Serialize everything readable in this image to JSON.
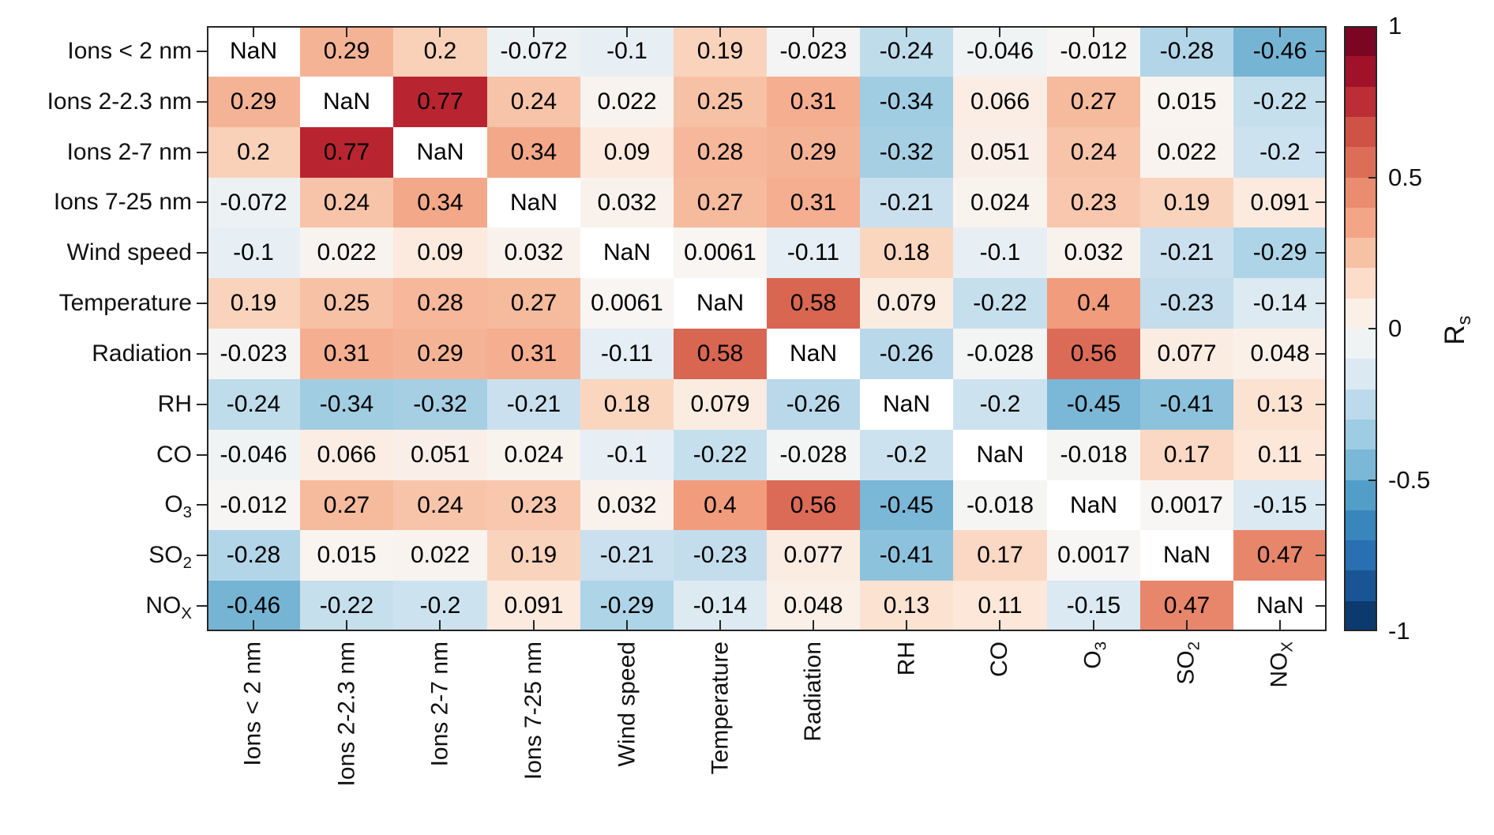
{
  "chart_data": {
    "type": "heatmap",
    "title": "",
    "nan_text": "NaN",
    "variables": [
      {
        "main": "Ions < 2 nm",
        "sub": ""
      },
      {
        "main": "Ions 2-2.3 nm",
        "sub": ""
      },
      {
        "main": "Ions 2-7 nm",
        "sub": ""
      },
      {
        "main": "Ions 7-25 nm",
        "sub": ""
      },
      {
        "main": "Wind speed",
        "sub": ""
      },
      {
        "main": "Temperature",
        "sub": ""
      },
      {
        "main": "Radiation",
        "sub": ""
      },
      {
        "main": "RH",
        "sub": ""
      },
      {
        "main": "CO",
        "sub": ""
      },
      {
        "main": "O",
        "sub": "3"
      },
      {
        "main": "SO",
        "sub": "2"
      },
      {
        "main": "NO",
        "sub": "X"
      }
    ],
    "matrix": [
      [
        null,
        0.29,
        0.2,
        -0.072,
        -0.1,
        0.19,
        -0.023,
        -0.24,
        -0.046,
        -0.012,
        -0.28,
        -0.46
      ],
      [
        0.29,
        null,
        0.77,
        0.24,
        0.022,
        0.25,
        0.31,
        -0.34,
        0.066,
        0.27,
        0.015,
        -0.22
      ],
      [
        0.2,
        0.77,
        null,
        0.34,
        0.09,
        0.28,
        0.29,
        -0.32,
        0.051,
        0.24,
        0.022,
        -0.2
      ],
      [
        -0.072,
        0.24,
        0.34,
        null,
        0.032,
        0.27,
        0.31,
        -0.21,
        0.024,
        0.23,
        0.19,
        0.091
      ],
      [
        -0.1,
        0.022,
        0.09,
        0.032,
        null,
        0.0061,
        -0.11,
        0.18,
        -0.1,
        0.032,
        -0.21,
        -0.29
      ],
      [
        0.19,
        0.25,
        0.28,
        0.27,
        0.0061,
        null,
        0.58,
        0.079,
        -0.22,
        0.4,
        -0.23,
        -0.14
      ],
      [
        -0.023,
        0.31,
        0.29,
        0.31,
        -0.11,
        0.58,
        null,
        -0.26,
        -0.028,
        0.56,
        0.077,
        0.048
      ],
      [
        -0.24,
        -0.34,
        -0.32,
        -0.21,
        0.18,
        0.079,
        -0.26,
        null,
        -0.2,
        -0.45,
        -0.41,
        0.13
      ],
      [
        -0.046,
        0.066,
        0.051,
        0.024,
        -0.1,
        -0.22,
        -0.028,
        -0.2,
        null,
        -0.018,
        0.17,
        0.11
      ],
      [
        -0.012,
        0.27,
        0.24,
        0.23,
        0.032,
        0.4,
        0.56,
        -0.45,
        -0.018,
        null,
        0.0017,
        -0.15
      ],
      [
        -0.28,
        0.015,
        0.022,
        0.19,
        -0.21,
        -0.23,
        0.077,
        -0.41,
        0.17,
        0.0017,
        null,
        0.47
      ],
      [
        -0.46,
        -0.22,
        -0.2,
        0.091,
        -0.29,
        -0.14,
        0.048,
        0.13,
        0.11,
        -0.15,
        0.47,
        null
      ]
    ],
    "colorbar": {
      "label_main": "R",
      "label_sub": "s",
      "range": [
        -1,
        1
      ],
      "steps": 20,
      "ticks": [
        {
          "label": "1",
          "value": 1
        },
        {
          "label": "0.5",
          "value": 0.5
        },
        {
          "label": "0",
          "value": 0
        },
        {
          "label": "-0.5",
          "value": -0.5
        },
        {
          "label": "-1",
          "value": -1
        }
      ]
    },
    "color_scale": {
      "levels": [
        -1,
        -0.9,
        -0.8,
        -0.7,
        -0.6,
        -0.5,
        -0.4,
        -0.3,
        -0.2,
        -0.1,
        0,
        0.1,
        0.2,
        0.3,
        0.4,
        0.5,
        0.6,
        0.7,
        0.8,
        0.9,
        1
      ],
      "colors": [
        "#053061",
        "#12447c",
        "#2166ac",
        "#2e79b5",
        "#4393c3",
        "#63a8ce",
        "#92c5de",
        "#abd2e6",
        "#cde2ef",
        "#e7eff4",
        "#f8f6f4",
        "#fce9dc",
        "#f9d1b8",
        "#f5b092",
        "#f19c7c",
        "#e27c63",
        "#d6604d",
        "#c6443f",
        "#b2182b",
        "#8c0b26",
        "#67001f"
      ],
      "nan_color": "#ffffff"
    },
    "axis_color": "#262626",
    "text_color": "#111111",
    "grid": false,
    "legend_position": "right-colorbar"
  }
}
